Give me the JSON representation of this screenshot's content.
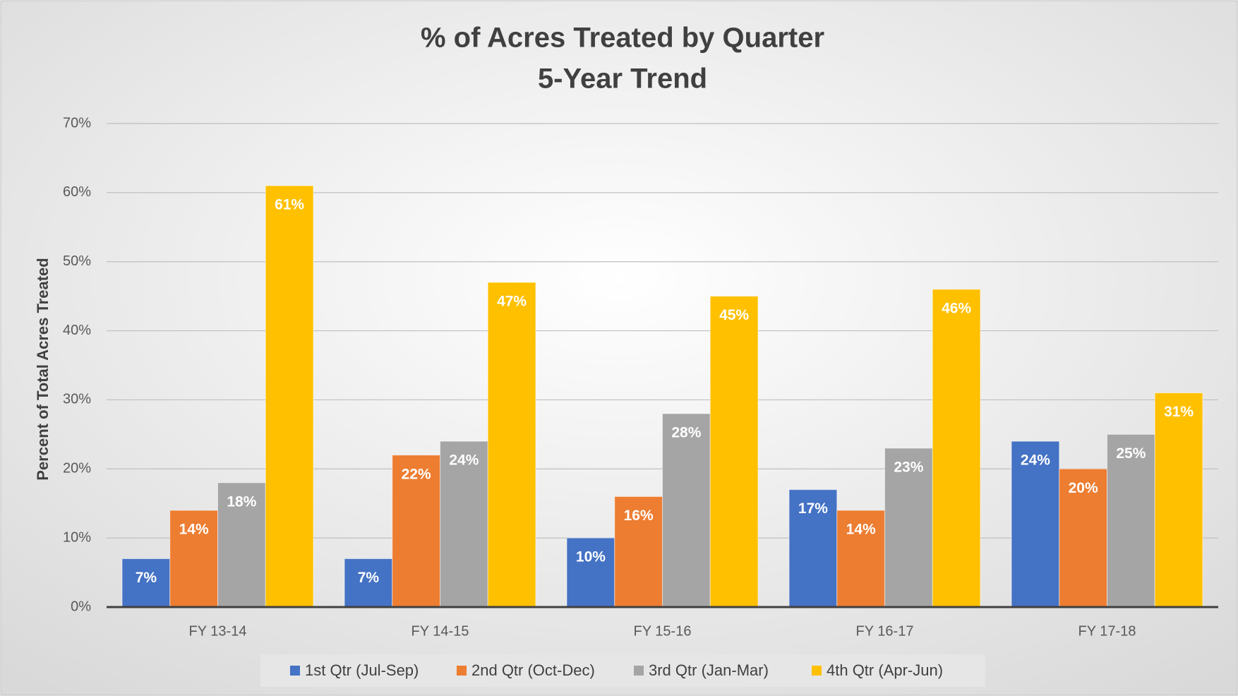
{
  "chart_data": {
    "type": "bar",
    "title": "% of Acres Treated by Quarter",
    "subtitle": "5-Year Trend",
    "y_label": "Percent of Total Acres Treated",
    "categories": [
      "FY 13-14",
      "FY 14-15",
      "FY 15-16",
      "FY 16-17",
      "FY 17-18"
    ],
    "series": [
      {
        "name": "1st Qtr (Jul-Sep)",
        "color": "#4472c4",
        "values": [
          7,
          7,
          10,
          17,
          24
        ],
        "value_labels": [
          "7%",
          "7%",
          "10%",
          "17%",
          "24%"
        ]
      },
      {
        "name": "2nd Qtr (Oct-Dec)",
        "color": "#ed7d31",
        "values": [
          14,
          22,
          16,
          14,
          20
        ],
        "value_labels": [
          "14%",
          "22%",
          "16%",
          "14%",
          "20%"
        ]
      },
      {
        "name": "3rd Qtr (Jan-Mar)",
        "color": "#a5a5a5",
        "values": [
          18,
          24,
          28,
          23,
          25
        ],
        "value_labels": [
          "18%",
          "24%",
          "28%",
          "23%",
          "25%"
        ]
      },
      {
        "name": "4th Qtr (Apr-Jun)",
        "color": "#ffc000",
        "values": [
          61,
          47,
          45,
          46,
          31
        ],
        "value_labels": [
          "61%",
          "47%",
          "45%",
          "46%",
          "31%"
        ]
      }
    ],
    "ylim": [
      0,
      70
    ],
    "yticks": [
      {
        "value": 0,
        "label": "0%"
      },
      {
        "value": 10,
        "label": "10%"
      },
      {
        "value": 20,
        "label": "20%"
      },
      {
        "value": 30,
        "label": "30%"
      },
      {
        "value": 40,
        "label": "40%"
      },
      {
        "value": 50,
        "label": "50%"
      },
      {
        "value": 60,
        "label": "60%"
      },
      {
        "value": 70,
        "label": "70%"
      }
    ],
    "grid": true,
    "legend": "bottom"
  }
}
